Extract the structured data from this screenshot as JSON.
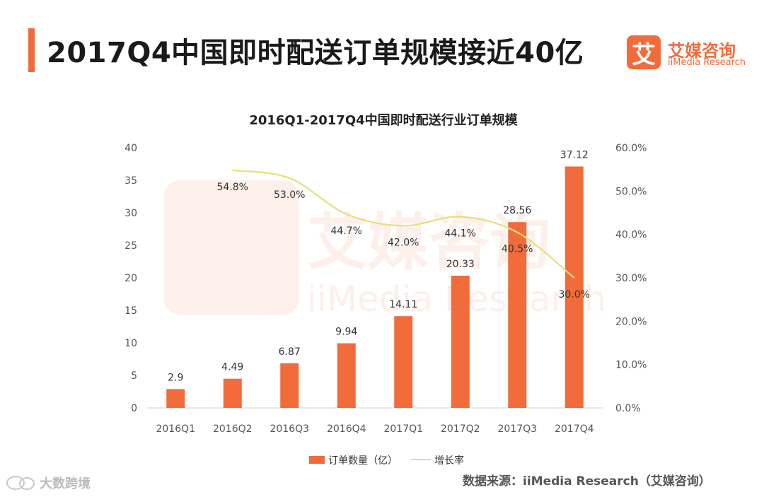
{
  "header": {
    "title": "2017Q4中国即时配送订单规模接近40亿"
  },
  "brand": {
    "mark": "艾",
    "name_cn": "艾媒咨询",
    "name_en": "iiMedia Research"
  },
  "watermark": {
    "cn": "艾媒咨询",
    "en": "iiMedia Research"
  },
  "source": "数据来源：iiMedia Research（艾媒咨询）",
  "corner": "大数跨境",
  "colors": {
    "bar": "#f26b3a",
    "line": "#e6df7a",
    "accent": "#f26b3a"
  },
  "chart_data": {
    "type": "bar",
    "title": "2016Q1-2017Q4中国即时配送行业订单规模",
    "categories": [
      "2016Q1",
      "2016Q2",
      "2016Q3",
      "2016Q4",
      "2017Q1",
      "2017Q2",
      "2017Q3",
      "2017Q4"
    ],
    "series": [
      {
        "name": "订单数量（亿）",
        "type": "bar",
        "axis": "left",
        "values": [
          2.9,
          4.49,
          6.87,
          9.94,
          14.11,
          20.33,
          28.56,
          37.12
        ],
        "labels": [
          "2.9",
          "4.49",
          "6.87",
          "9.94",
          "14.11",
          "20.33",
          "28.56",
          "37.12"
        ]
      },
      {
        "name": "增长率",
        "type": "line",
        "axis": "right",
        "values": [
          null,
          54.8,
          53.0,
          44.7,
          42.0,
          44.1,
          40.5,
          30.0
        ],
        "labels": [
          "",
          "54.8%",
          "53.0%",
          "44.7%",
          "42.0%",
          "44.1%",
          "40.5%",
          "30.0%"
        ]
      }
    ],
    "ylim_left": [
      0,
      40
    ],
    "yticks_left": [
      "0",
      "5",
      "10",
      "15",
      "20",
      "25",
      "30",
      "35",
      "40"
    ],
    "ylim_right": [
      0,
      60
    ],
    "yticks_right": [
      "0.0%",
      "10.0%",
      "20.0%",
      "30.0%",
      "40.0%",
      "50.0%",
      "60.0%"
    ],
    "legend": [
      "订单数量（亿）",
      "增长率"
    ],
    "legend_position": "bottom"
  }
}
